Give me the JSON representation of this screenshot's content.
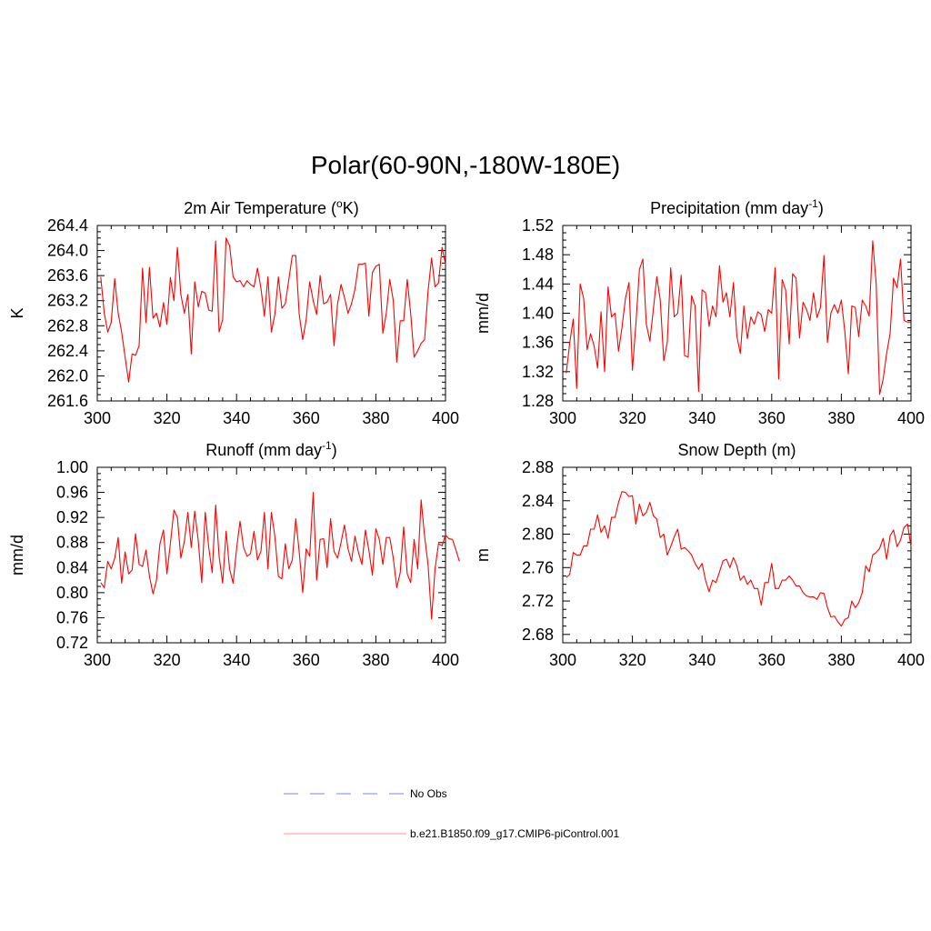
{
  "page": {
    "title": "Polar(60-90N,-180W-180E)"
  },
  "colors": {
    "model": "#ff0000",
    "obs": "#9999ff",
    "axis": "#000000"
  },
  "legend": {
    "obs_label": "No Obs",
    "model_label": "b.e21.B1850.f09_g17.CMIP6-piControl.001"
  },
  "chart_data": [
    {
      "type": "line",
      "title_main": "2m Air Temperature (",
      "title_sup": "o",
      "title_tail": "K)",
      "ylabel": "K",
      "xlim": [
        300,
        400
      ],
      "ylim": [
        261.6,
        264.4
      ],
      "xticks": [
        "300",
        "320",
        "340",
        "360",
        "380",
        "400"
      ],
      "yticks": [
        "264.4",
        "264.0",
        "263.6",
        "263.2",
        "262.8",
        "262.4",
        "262.0",
        "261.6"
      ],
      "series": [
        {
          "name": "b.e21.B1850.f09_g17.CMIP6-piControl.001",
          "x_start": 301,
          "values": [
            263.58,
            263.0,
            262.7,
            262.85,
            263.55,
            263.0,
            262.7,
            262.3,
            261.9,
            262.35,
            262.33,
            262.48,
            263.72,
            262.85,
            263.73,
            262.92,
            263.0,
            262.78,
            263.17,
            262.82,
            263.57,
            263.2,
            264.05,
            263.3,
            263.0,
            263.3,
            262.35,
            263.5,
            263.1,
            263.35,
            263.32,
            263.05,
            263.03,
            264.15,
            262.7,
            262.9,
            264.2,
            264.08,
            263.58,
            263.5,
            263.52,
            263.42,
            263.52,
            263.46,
            263.42,
            263.72,
            263.4,
            262.95,
            263.58,
            262.7,
            262.98,
            263.58,
            263.08,
            263.15,
            263.53,
            263.92,
            263.92,
            262.98,
            262.58,
            262.9,
            263.5,
            263.2,
            262.98,
            263.6,
            263.15,
            263.18,
            263.3,
            262.48,
            263.15,
            263.46,
            263.25,
            263.0,
            263.15,
            263.38,
            263.78,
            263.78,
            263.8,
            262.95,
            263.65,
            263.75,
            263.78,
            262.68,
            263.0,
            263.54,
            263.2,
            262.22,
            262.88,
            262.88,
            263.54,
            263.0,
            262.3,
            262.4,
            262.52,
            262.58,
            263.35,
            263.88,
            263.42,
            263.48,
            264.05,
            263.78
          ]
        }
      ]
    },
    {
      "type": "line",
      "title_main": "Precipitation (mm day",
      "title_sup": "-1",
      "title_tail": ")",
      "ylabel": "mm/d",
      "xlim": [
        300,
        400
      ],
      "ylim": [
        1.28,
        1.52
      ],
      "xticks": [
        "300",
        "320",
        "340",
        "360",
        "380",
        "400"
      ],
      "yticks": [
        "1.52",
        "1.48",
        "1.44",
        "1.40",
        "1.36",
        "1.32",
        "1.28"
      ],
      "series": [
        {
          "name": "b.e21.B1850.f09_g17.CMIP6-piControl.001",
          "x_start": 301,
          "values": [
            1.318,
            1.36,
            1.392,
            1.297,
            1.44,
            1.42,
            1.35,
            1.372,
            1.355,
            1.325,
            1.402,
            1.32,
            1.436,
            1.395,
            1.4,
            1.348,
            1.38,
            1.42,
            1.442,
            1.322,
            1.385,
            1.46,
            1.474,
            1.385,
            1.362,
            1.405,
            1.45,
            1.418,
            1.335,
            1.36,
            1.462,
            1.395,
            1.4,
            1.452,
            1.342,
            1.34,
            1.424,
            1.41,
            1.293,
            1.432,
            1.428,
            1.382,
            1.41,
            1.395,
            1.465,
            1.415,
            1.428,
            1.395,
            1.442,
            1.368,
            1.345,
            1.41,
            1.365,
            1.395,
            1.385,
            1.402,
            1.398,
            1.375,
            1.405,
            1.4,
            1.462,
            1.31,
            1.446,
            1.432,
            1.358,
            1.454,
            1.448,
            1.366,
            1.415,
            1.405,
            1.39,
            1.428,
            1.394,
            1.408,
            1.479,
            1.36,
            1.4,
            1.412,
            1.4,
            1.418,
            1.375,
            1.317,
            1.41,
            1.408,
            1.368,
            1.418,
            1.41,
            1.396,
            1.499,
            1.44,
            1.289,
            1.31,
            1.345,
            1.372,
            1.448,
            1.435,
            1.474,
            1.39,
            1.388,
            1.388
          ]
        }
      ]
    },
    {
      "type": "line",
      "title_main": "Runoff (mm day",
      "title_sup": "-1",
      "title_tail": ")",
      "ylabel": "mm/d",
      "xlim": [
        300,
        400
      ],
      "ylim": [
        0.72,
        1.0
      ],
      "xticks": [
        "300",
        "320",
        "340",
        "360",
        "380",
        "400"
      ],
      "yticks": [
        "1.00",
        "0.96",
        "0.92",
        "0.88",
        "0.84",
        "0.80",
        "0.76",
        "0.72"
      ],
      "series": [
        {
          "name": "b.e21.B1850.f09_g17.CMIP6-piControl.001",
          "x_start": 301,
          "values": [
            0.816,
            0.808,
            0.85,
            0.838,
            0.855,
            0.888,
            0.815,
            0.865,
            0.83,
            0.836,
            0.894,
            0.845,
            0.842,
            0.868,
            0.826,
            0.798,
            0.82,
            0.878,
            0.9,
            0.83,
            0.878,
            0.932,
            0.92,
            0.855,
            0.882,
            0.928,
            0.872,
            0.93,
            0.882,
            0.816,
            0.928,
            0.872,
            0.832,
            0.94,
            0.858,
            0.815,
            0.898,
            0.838,
            0.815,
            0.87,
            0.914,
            0.872,
            0.858,
            0.862,
            0.898,
            0.852,
            0.866,
            0.928,
            0.838,
            0.928,
            0.89,
            0.826,
            0.822,
            0.878,
            0.838,
            0.852,
            0.918,
            0.865,
            0.8,
            0.87,
            0.858,
            0.96,
            0.82,
            0.885,
            0.886,
            0.84,
            0.918,
            0.866,
            0.855,
            0.88,
            0.908,
            0.87,
            0.85,
            0.89,
            0.864,
            0.845,
            0.9,
            0.868,
            0.828,
            0.902,
            0.885,
            0.845,
            0.888,
            0.888,
            0.855,
            0.808,
            0.832,
            0.905,
            0.83,
            0.816,
            0.885,
            0.838,
            0.948,
            0.89,
            0.845,
            0.758,
            0.838,
            0.878,
            0.875,
            0.892,
            0.886,
            0.885,
            0.868,
            0.85
          ]
        }
      ]
    },
    {
      "type": "line",
      "title_main": "Snow Depth (m)",
      "title_sup": "",
      "title_tail": "",
      "ylabel": "m",
      "xlim": [
        300,
        400
      ],
      "ylim": [
        2.67,
        2.88
      ],
      "xticks": [
        "300",
        "320",
        "340",
        "360",
        "380",
        "400"
      ],
      "yticks": [
        "2.88",
        "2.84",
        "2.80",
        "2.76",
        "2.72",
        "2.68"
      ],
      "series": [
        {
          "name": "b.e21.B1850.f09_g17.CMIP6-piControl.001",
          "x_start": 301,
          "values": [
            2.748,
            2.752,
            2.778,
            2.775,
            2.775,
            2.786,
            2.786,
            2.806,
            2.806,
            2.823,
            2.802,
            2.81,
            2.795,
            2.82,
            2.82,
            2.838,
            2.851,
            2.85,
            2.845,
            2.846,
            2.812,
            2.836,
            2.822,
            2.826,
            2.838,
            2.822,
            2.818,
            2.796,
            2.8,
            2.775,
            2.785,
            2.797,
            2.806,
            2.782,
            2.784,
            2.78,
            2.775,
            2.765,
            2.758,
            2.765,
            2.745,
            2.731,
            2.745,
            2.742,
            2.755,
            2.768,
            2.77,
            2.76,
            2.772,
            2.762,
            2.745,
            2.75,
            2.74,
            2.745,
            2.735,
            2.735,
            2.715,
            2.742,
            2.742,
            2.765,
            2.735,
            2.735,
            2.745,
            2.745,
            2.75,
            2.745,
            2.738,
            2.738,
            2.73,
            2.726,
            2.725,
            2.725,
            2.722,
            2.73,
            2.729,
            2.712,
            2.701,
            2.702,
            2.695,
            2.69,
            2.698,
            2.7,
            2.72,
            2.712,
            2.718,
            2.73,
            2.762,
            2.755,
            2.775,
            2.778,
            2.783,
            2.795,
            2.77,
            2.798,
            2.805,
            2.785,
            2.793,
            2.808,
            2.812,
            2.785
          ]
        }
      ]
    }
  ]
}
